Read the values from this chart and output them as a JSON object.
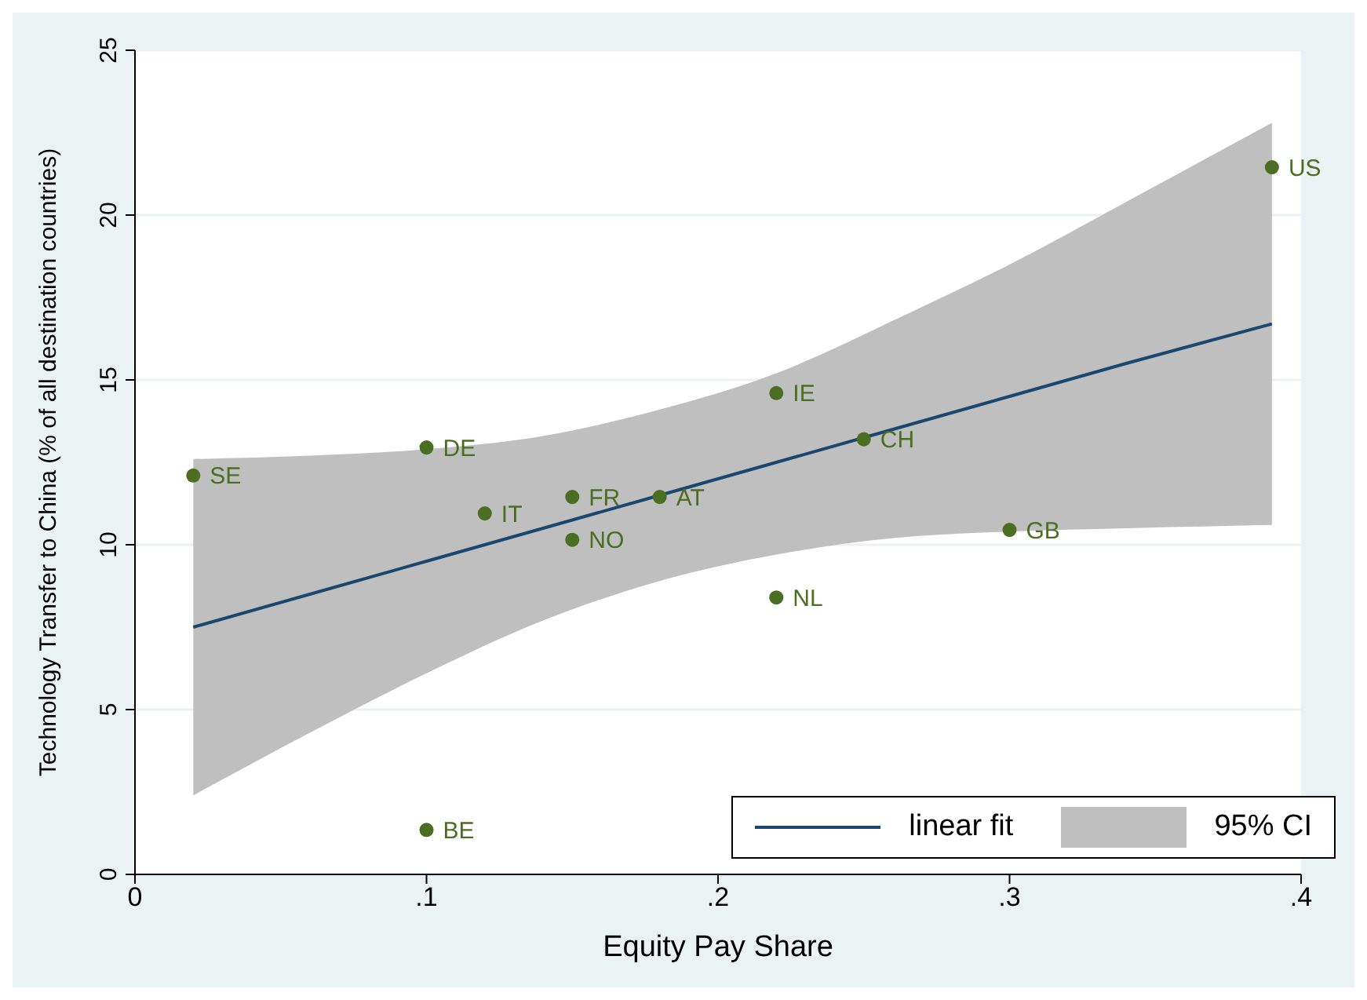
{
  "chart_data": {
    "type": "scatter",
    "xlabel": "Equity Pay Share",
    "ylabel": "Technology Transfer to China (% of all destination countries)",
    "xlim": [
      0,
      0.4
    ],
    "xticks": [
      0,
      {
        "value": 0.1,
        "label": ".1"
      },
      {
        "value": 0.2,
        "label": ".2"
      },
      {
        "value": 0.3,
        "label": ".3"
      },
      {
        "value": 0.4,
        "label": ".4"
      }
    ],
    "ylim": [
      0,
      25
    ],
    "yticks": [
      0,
      5,
      10,
      15,
      20,
      25
    ],
    "grid": "y",
    "legend": "bottom right",
    "annotations": [
      "95% CI"
    ],
    "series": [
      {
        "type": "line",
        "name": "linear fit",
        "color": "#1a476f",
        "x": [
          0.02,
          0.06,
          0.1,
          0.14,
          0.18,
          0.22,
          0.26,
          0.3,
          0.34,
          0.39
        ],
        "values": [
          7.5,
          8.5,
          9.5,
          10.5,
          11.5,
          12.5,
          13.5,
          14.5,
          15.5,
          16.7
        ],
        "upper": [
          12.6,
          12.7,
          12.9,
          13.3,
          14.1,
          15.2,
          16.8,
          18.5,
          20.4,
          22.8
        ],
        "lower": [
          2.4,
          4.3,
          6.1,
          7.7,
          8.9,
          9.7,
          10.2,
          10.4,
          10.5,
          10.6
        ]
      },
      {
        "marker": "circle",
        "color": "#4b6e23",
        "x": [
          0.02,
          0.1,
          0.12,
          0.15,
          0.15,
          0.18,
          0.22,
          0.25,
          0.3,
          0.22,
          0.39,
          0.1
        ],
        "values": [
          12.1,
          12.95,
          10.95,
          11.45,
          10.15,
          11.45,
          14.6,
          13.2,
          10.45,
          8.4,
          21.45,
          1.35
        ],
        "value_labels": [
          "SE",
          "DE",
          "IT",
          "FR",
          "NO",
          "AT",
          "IE",
          "CH",
          "GB",
          "NL",
          "US",
          "BE"
        ]
      }
    ]
  }
}
